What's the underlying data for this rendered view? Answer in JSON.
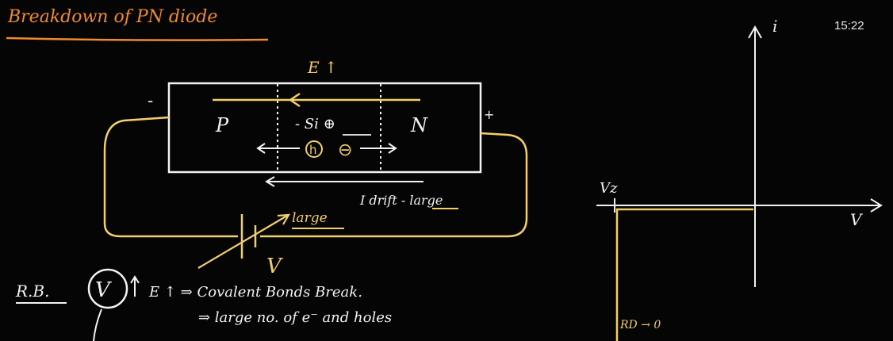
{
  "title": "Breakdown of PN diode",
  "clock": "15:22",
  "circuit": {
    "field_label": "E ↑",
    "minus_terminal": "-",
    "plus_terminal": "+",
    "p_region": "P",
    "n_region": "N",
    "center_label": "- Si ⊕",
    "hole_symbol": "h",
    "electron_symbol": "⊖",
    "drift_label": "I drift - large",
    "battery_arrow_label": "large",
    "battery_label": "V"
  },
  "notes": {
    "rb_label": "R.B.",
    "voltage_symbol": "V",
    "line1": "E ↑ ⇒ Covalent Bonds Break.",
    "line2": "⇒ large no. of e⁻ and holes"
  },
  "graph": {
    "y_axis_label": "i",
    "x_axis_label": "V",
    "vz_label": "Vz",
    "rd_label": "RD → 0"
  },
  "colors": {
    "background": "#050505",
    "chalk_white": "#f2f2f2",
    "chalk_yellow": "#f2cf6a",
    "chalk_orange": "#f08a2c"
  }
}
